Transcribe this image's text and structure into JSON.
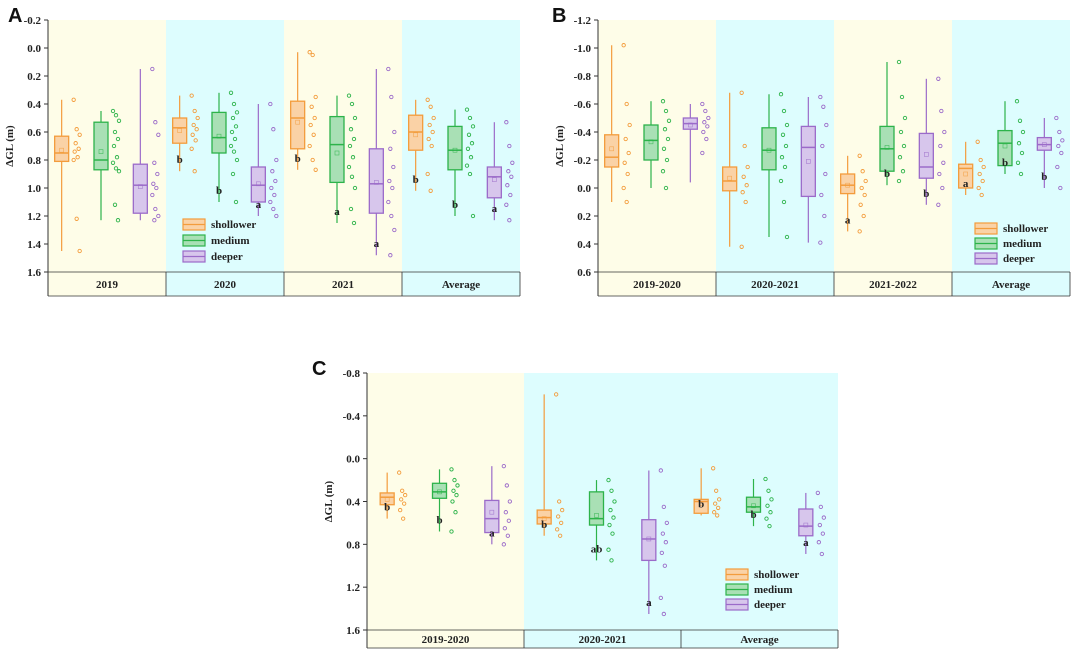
{
  "colors": {
    "shallower": "#F39C3C",
    "medium": "#2DB34A",
    "deeper": "#9B6BC9",
    "shallower_fill": "#FAD2A6",
    "medium_fill": "#A9E0B5",
    "deeper_fill": "#D7C6EC",
    "bg_yellow": "#FEFDE8",
    "bg_cyan": "#DDFDFE"
  },
  "chart_data": [
    {
      "panel": "A",
      "type": "box",
      "ylabel": "ΔGL (m)",
      "ylim": [
        -0.2,
        1.6
      ],
      "inverted": true,
      "yticks": [
        "-0.2",
        "0.0",
        "0.2",
        "0.4",
        "0.6",
        "0.8",
        "1.0",
        "1.2",
        "1.4",
        "1.6"
      ],
      "series_names": [
        "shollower",
        "medium",
        "deeper"
      ],
      "groups": [
        {
          "label": "2019",
          "bg": "yellow",
          "boxes": [
            {
              "q1": 0.63,
              "med": 0.75,
              "q3": 0.81,
              "wlo": 0.37,
              "whi": 1.45,
              "mean": 0.73,
              "letter": "",
              "pts": [
                0.37,
                0.58,
                0.62,
                0.68,
                0.72,
                0.74,
                0.78,
                0.8,
                1.22,
                1.45
              ]
            },
            {
              "q1": 0.53,
              "med": 0.8,
              "q3": 0.87,
              "wlo": 0.45,
              "whi": 1.23,
              "mean": 0.74,
              "letter": "",
              "pts": [
                0.45,
                0.48,
                0.52,
                0.6,
                0.65,
                0.7,
                0.78,
                0.82,
                0.86,
                0.88,
                1.12,
                1.23
              ]
            },
            {
              "q1": 0.83,
              "med": 0.98,
              "q3": 1.18,
              "wlo": 0.15,
              "whi": 1.23,
              "mean": 0.99,
              "letter": "",
              "pts": [
                0.15,
                0.53,
                0.62,
                0.82,
                0.9,
                0.97,
                1.0,
                1.05,
                1.15,
                1.2,
                1.23
              ]
            }
          ]
        },
        {
          "label": "2020",
          "bg": "cyan",
          "boxes": [
            {
              "q1": 0.5,
              "med": 0.57,
              "q3": 0.68,
              "wlo": 0.34,
              "whi": 0.88,
              "mean": 0.59,
              "letter": "b",
              "pts": [
                0.34,
                0.45,
                0.5,
                0.55,
                0.58,
                0.62,
                0.66,
                0.72,
                0.88
              ]
            },
            {
              "q1": 0.46,
              "med": 0.64,
              "q3": 0.75,
              "wlo": 0.32,
              "whi": 1.1,
              "mean": 0.63,
              "letter": "b",
              "pts": [
                0.32,
                0.4,
                0.46,
                0.5,
                0.56,
                0.6,
                0.65,
                0.7,
                0.74,
                0.8,
                0.9,
                1.1
              ]
            },
            {
              "q1": 0.85,
              "med": 0.98,
              "q3": 1.1,
              "wlo": 0.4,
              "whi": 1.2,
              "mean": 0.97,
              "letter": "a",
              "pts": [
                0.4,
                0.58,
                0.8,
                0.88,
                0.95,
                1.0,
                1.05,
                1.1,
                1.15,
                1.2
              ]
            }
          ]
        },
        {
          "label": "2021",
          "bg": "yellow",
          "boxes": [
            {
              "q1": 0.38,
              "med": 0.5,
              "q3": 0.72,
              "wlo": 0.03,
              "whi": 0.87,
              "mean": 0.53,
              "letter": "b",
              "pts": [
                0.03,
                0.05,
                0.35,
                0.42,
                0.5,
                0.55,
                0.62,
                0.7,
                0.8,
                0.87
              ]
            },
            {
              "q1": 0.49,
              "med": 0.69,
              "q3": 0.96,
              "wlo": 0.34,
              "whi": 1.25,
              "mean": 0.75,
              "letter": "a",
              "pts": [
                0.34,
                0.4,
                0.5,
                0.58,
                0.65,
                0.7,
                0.78,
                0.85,
                0.92,
                1.0,
                1.15,
                1.25
              ]
            },
            {
              "q1": 0.72,
              "med": 0.97,
              "q3": 1.18,
              "wlo": 0.15,
              "whi": 1.48,
              "mean": 0.96,
              "letter": "a",
              "pts": [
                0.15,
                0.35,
                0.6,
                0.72,
                0.85,
                0.95,
                1.0,
                1.1,
                1.2,
                1.3,
                1.48
              ]
            }
          ]
        },
        {
          "label": "Average",
          "bg": "cyan",
          "boxes": [
            {
              "q1": 0.48,
              "med": 0.6,
              "q3": 0.73,
              "wlo": 0.37,
              "whi": 1.02,
              "mean": 0.62,
              "letter": "b",
              "pts": [
                0.37,
                0.42,
                0.5,
                0.55,
                0.6,
                0.65,
                0.7,
                0.9,
                1.02
              ]
            },
            {
              "q1": 0.56,
              "med": 0.73,
              "q3": 0.87,
              "wlo": 0.44,
              "whi": 1.2,
              "mean": 0.73,
              "letter": "b",
              "pts": [
                0.44,
                0.5,
                0.56,
                0.62,
                0.68,
                0.72,
                0.78,
                0.84,
                0.9,
                1.2
              ]
            },
            {
              "q1": 0.85,
              "med": 0.92,
              "q3": 1.07,
              "wlo": 0.53,
              "whi": 1.23,
              "mean": 0.94,
              "letter": "a",
              "pts": [
                0.53,
                0.7,
                0.82,
                0.88,
                0.92,
                0.98,
                1.05,
                1.12,
                1.23
              ]
            }
          ]
        }
      ]
    },
    {
      "panel": "B",
      "type": "box",
      "ylabel": "ΔGL (m)",
      "ylim": [
        -1.2,
        0.6
      ],
      "inverted": true,
      "yticks": [
        "-1.2",
        "-1.0",
        "-0.8",
        "-0.6",
        "-0.4",
        "-0.2",
        "0.0",
        "0.2",
        "0.4",
        "0.6"
      ],
      "series_names": [
        "shollower",
        "medium",
        "deeper"
      ],
      "groups": [
        {
          "label": "2019-2020",
          "bg": "yellow",
          "boxes": [
            {
              "q1": -0.38,
              "med": -0.22,
              "q3": -0.15,
              "wlo": -1.02,
              "whi": 0.1,
              "mean": -0.28,
              "letter": "",
              "pts": [
                -1.02,
                -0.6,
                -0.45,
                -0.35,
                -0.25,
                -0.18,
                -0.1,
                0.0,
                0.1
              ]
            },
            {
              "q1": -0.45,
              "med": -0.34,
              "q3": -0.2,
              "wlo": -0.62,
              "whi": 0.0,
              "mean": -0.33,
              "letter": "",
              "pts": [
                -0.62,
                -0.55,
                -0.48,
                -0.42,
                -0.35,
                -0.28,
                -0.2,
                -0.12,
                0.0
              ]
            },
            {
              "q1": -0.5,
              "med": -0.46,
              "q3": -0.42,
              "wlo": -0.6,
              "whi": -0.04,
              "mean": -0.45,
              "letter": "",
              "pts": [
                -0.6,
                -0.55,
                -0.5,
                -0.47,
                -0.44,
                -0.4,
                -0.35,
                -0.25
              ]
            }
          ]
        },
        {
          "label": "2020-2021",
          "bg": "cyan",
          "boxes": [
            {
              "q1": -0.15,
              "med": -0.05,
              "q3": 0.02,
              "wlo": -0.68,
              "whi": 0.42,
              "mean": -0.07,
              "letter": "",
              "pts": [
                -0.68,
                -0.3,
                -0.15,
                -0.08,
                -0.02,
                0.03,
                0.1,
                0.42
              ]
            },
            {
              "q1": -0.43,
              "med": -0.27,
              "q3": -0.13,
              "wlo": -0.67,
              "whi": 0.35,
              "mean": -0.27,
              "letter": "",
              "pts": [
                -0.67,
                -0.55,
                -0.45,
                -0.38,
                -0.3,
                -0.22,
                -0.15,
                -0.05,
                0.1,
                0.35
              ]
            },
            {
              "q1": -0.44,
              "med": -0.29,
              "q3": 0.06,
              "wlo": -0.65,
              "whi": 0.39,
              "mean": -0.19,
              "letter": "",
              "pts": [
                -0.65,
                -0.58,
                -0.45,
                -0.3,
                -0.1,
                0.05,
                0.2,
                0.39
              ]
            }
          ]
        },
        {
          "label": "2021-2022",
          "bg": "yellow",
          "boxes": [
            {
              "q1": -0.1,
              "med": -0.02,
              "q3": 0.04,
              "wlo": -0.23,
              "whi": 0.31,
              "mean": -0.02,
              "letter": "a",
              "pts": [
                -0.23,
                -0.12,
                -0.05,
                0.0,
                0.05,
                0.12,
                0.2,
                0.31
              ]
            },
            {
              "q1": -0.44,
              "med": -0.28,
              "q3": -0.12,
              "wlo": -0.9,
              "whi": -0.02,
              "mean": -0.29,
              "letter": "b",
              "pts": [
                -0.9,
                -0.65,
                -0.5,
                -0.4,
                -0.3,
                -0.22,
                -0.12,
                -0.05
              ]
            },
            {
              "q1": -0.39,
              "med": -0.15,
              "q3": -0.07,
              "wlo": -0.78,
              "whi": 0.12,
              "mean": -0.24,
              "letter": "b",
              "pts": [
                -0.78,
                -0.55,
                -0.4,
                -0.3,
                -0.18,
                -0.1,
                0.0,
                0.12
              ]
            }
          ]
        },
        {
          "label": "Average",
          "bg": "cyan",
          "boxes": [
            {
              "q1": -0.17,
              "med": -0.14,
              "q3": 0.0,
              "wlo": -0.33,
              "whi": 0.05,
              "mean": -0.1,
              "letter": "a",
              "pts": [
                -0.33,
                -0.2,
                -0.15,
                -0.1,
                -0.05,
                0.0,
                0.05
              ]
            },
            {
              "q1": -0.41,
              "med": -0.32,
              "q3": -0.16,
              "wlo": -0.62,
              "whi": -0.1,
              "mean": -0.3,
              "letter": "b",
              "pts": [
                -0.62,
                -0.48,
                -0.4,
                -0.32,
                -0.25,
                -0.18,
                -0.1
              ]
            },
            {
              "q1": -0.36,
              "med": -0.31,
              "q3": -0.27,
              "wlo": -0.5,
              "whi": 0.0,
              "mean": -0.31,
              "letter": "b",
              "pts": [
                -0.5,
                -0.4,
                -0.34,
                -0.3,
                -0.25,
                -0.15,
                0.0
              ]
            }
          ]
        }
      ]
    },
    {
      "panel": "C",
      "type": "box",
      "ylabel": "ΔGL (m)",
      "ylim": [
        -0.8,
        1.6
      ],
      "inverted": true,
      "yticks": [
        "-0.8",
        "-0.4",
        "0.0",
        "0.4",
        "0.8",
        "1.2",
        "1.6"
      ],
      "series_names": [
        "shollower",
        "medium",
        "deeper"
      ],
      "groups": [
        {
          "label": "2019-2020",
          "bg": "yellow",
          "boxes": [
            {
              "q1": 0.32,
              "med": 0.36,
              "q3": 0.43,
              "wlo": 0.13,
              "whi": 0.56,
              "mean": 0.38,
              "letter": "b",
              "pts": [
                0.13,
                0.3,
                0.34,
                0.38,
                0.42,
                0.48,
                0.56
              ]
            },
            {
              "q1": 0.23,
              "med": 0.31,
              "q3": 0.37,
              "wlo": 0.1,
              "whi": 0.68,
              "mean": 0.31,
              "letter": "b",
              "pts": [
                0.1,
                0.2,
                0.25,
                0.3,
                0.34,
                0.4,
                0.5,
                0.68
              ]
            },
            {
              "q1": 0.39,
              "med": 0.56,
              "q3": 0.69,
              "wlo": 0.07,
              "whi": 0.8,
              "mean": 0.5,
              "letter": "a",
              "pts": [
                0.07,
                0.25,
                0.4,
                0.5,
                0.58,
                0.65,
                0.72,
                0.8
              ]
            }
          ]
        },
        {
          "label": "2020-2021",
          "bg": "cyan",
          "boxes": [
            {
              "q1": 0.48,
              "med": 0.55,
              "q3": 0.61,
              "wlo": -0.6,
              "whi": 0.72,
              "mean": 0.56,
              "letter": "b",
              "pts": [
                -0.6,
                0.4,
                0.48,
                0.54,
                0.6,
                0.66,
                0.72
              ]
            },
            {
              "q1": 0.31,
              "med": 0.56,
              "q3": 0.62,
              "wlo": 0.2,
              "whi": 0.95,
              "mean": 0.53,
              "letter": "ab",
              "pts": [
                0.2,
                0.3,
                0.4,
                0.48,
                0.55,
                0.62,
                0.7,
                0.85,
                0.95
              ]
            },
            {
              "q1": 0.57,
              "med": 0.75,
              "q3": 0.95,
              "wlo": 0.11,
              "whi": 1.45,
              "mean": 0.75,
              "letter": "a",
              "pts": [
                0.11,
                0.45,
                0.6,
                0.7,
                0.78,
                0.88,
                1.0,
                1.3,
                1.45
              ]
            }
          ]
        },
        {
          "label": "Average",
          "bg": "cyan",
          "boxes": [
            {
              "q1": 0.38,
              "med": 0.4,
              "q3": 0.51,
              "wlo": 0.09,
              "whi": 0.53,
              "mean": 0.42,
              "letter": "b",
              "pts": [
                0.09,
                0.3,
                0.38,
                0.42,
                0.46,
                0.5,
                0.53
              ]
            },
            {
              "q1": 0.36,
              "med": 0.45,
              "q3": 0.5,
              "wlo": 0.19,
              "whi": 0.63,
              "mean": 0.44,
              "letter": "b",
              "pts": [
                0.19,
                0.3,
                0.38,
                0.44,
                0.5,
                0.56,
                0.63
              ]
            },
            {
              "q1": 0.47,
              "med": 0.63,
              "q3": 0.72,
              "wlo": 0.32,
              "whi": 0.89,
              "mean": 0.62,
              "letter": "a",
              "pts": [
                0.32,
                0.45,
                0.55,
                0.62,
                0.7,
                0.78,
                0.89
              ]
            }
          ]
        }
      ]
    }
  ]
}
